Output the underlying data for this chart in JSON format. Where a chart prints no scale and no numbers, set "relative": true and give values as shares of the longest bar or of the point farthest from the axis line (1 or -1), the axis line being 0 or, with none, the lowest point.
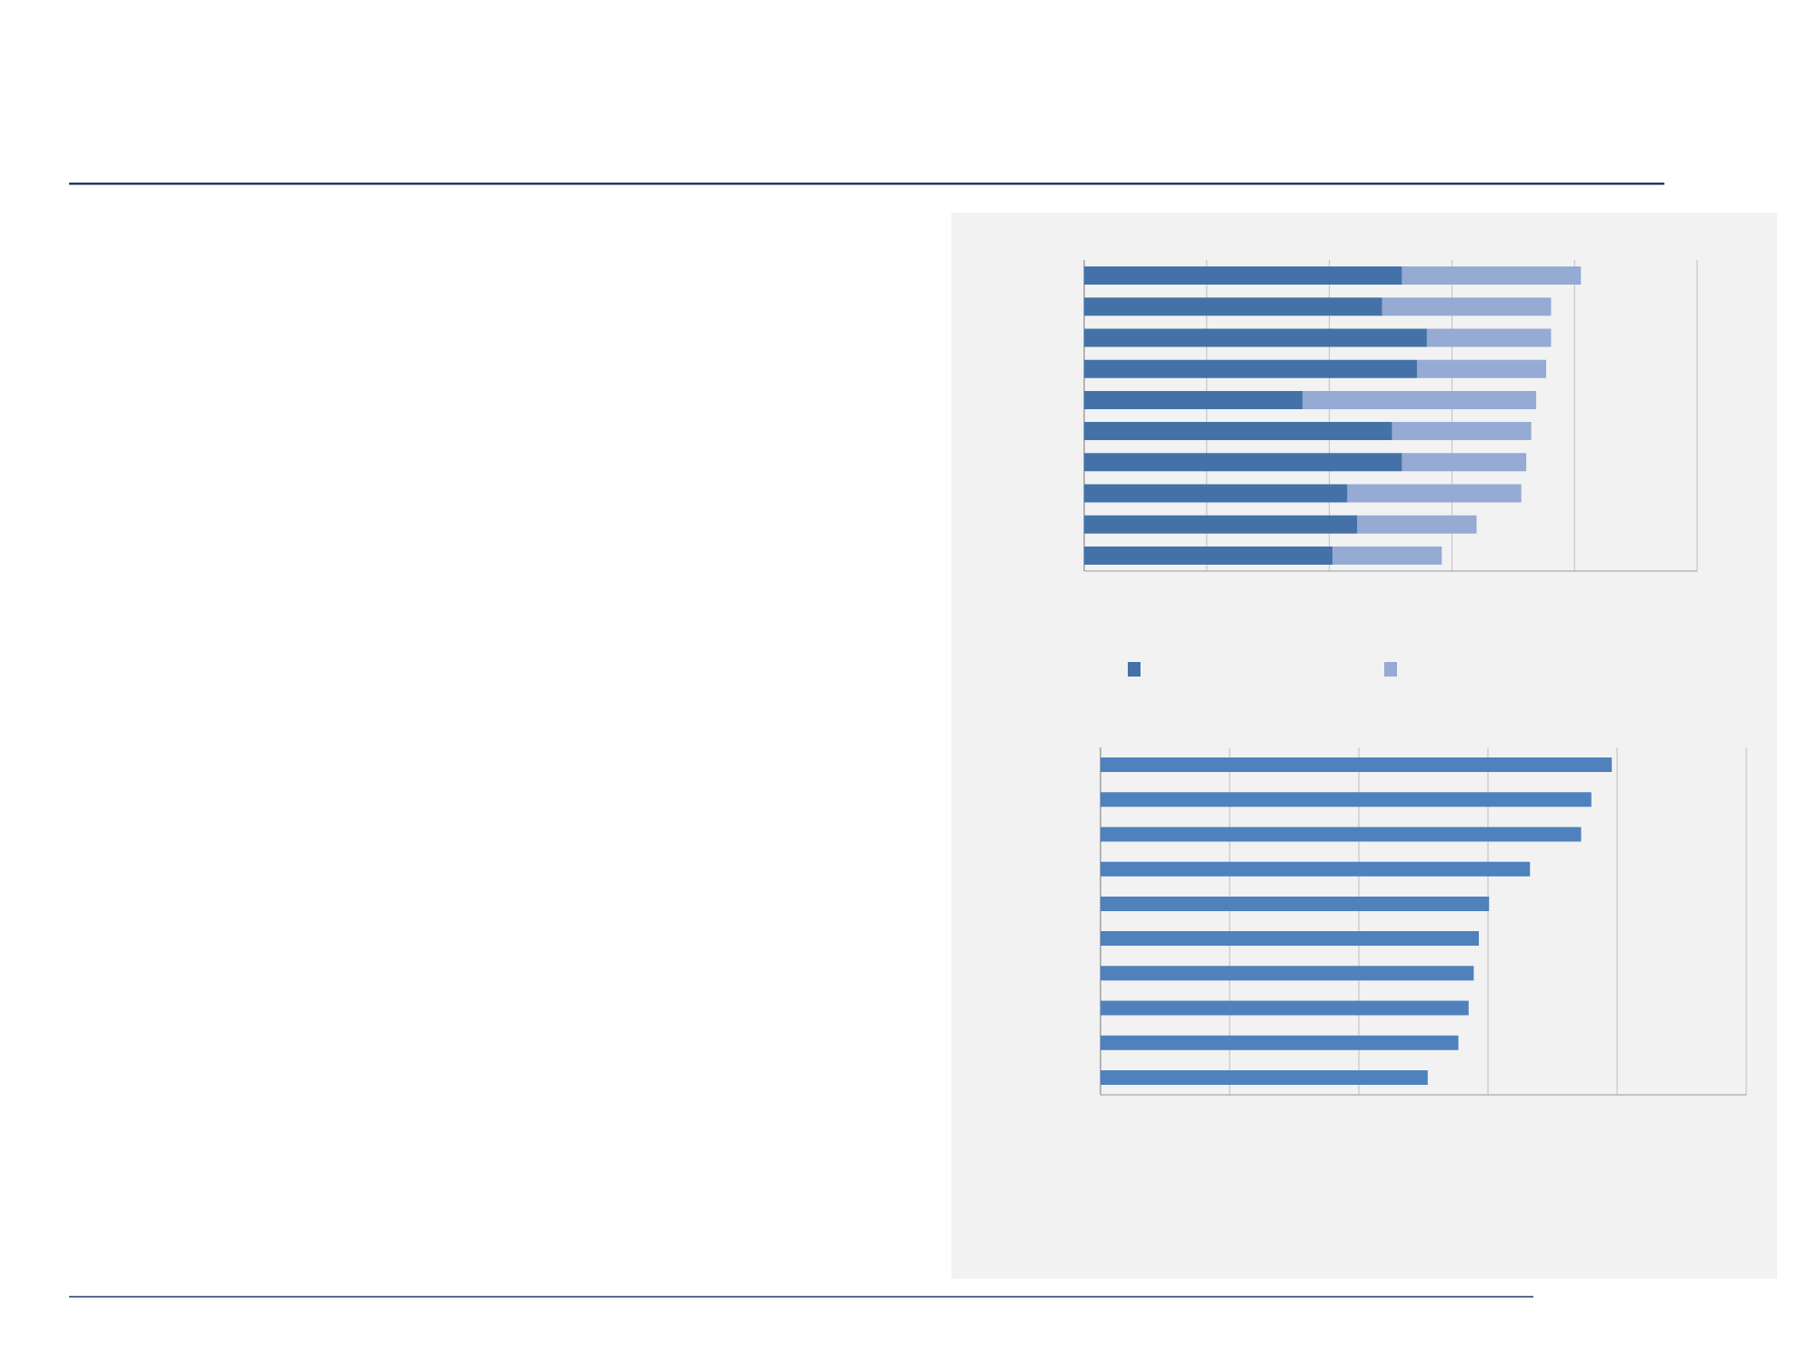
{
  "chart_data": [
    {
      "type": "bar",
      "orientation": "horizontal",
      "stacked": true,
      "relative": true,
      "grid": "x",
      "categories": [
        null,
        null,
        null,
        null,
        null,
        null,
        null,
        null,
        null,
        null
      ],
      "series": [
        {
          "color": "#4472a8",
          "values": [
            0.64,
            0.6,
            0.69,
            0.67,
            0.44,
            0.62,
            0.64,
            0.53,
            0.55,
            0.5
          ]
        },
        {
          "color": "#95abd3",
          "values": [
            0.36,
            0.34,
            0.25,
            0.26,
            0.47,
            0.28,
            0.25,
            0.35,
            0.24,
            0.22
          ]
        }
      ]
    },
    {
      "type": "bar",
      "orientation": "horizontal",
      "relative": true,
      "grid": "x",
      "color": "#4f81bd",
      "categories": [
        null,
        null,
        null,
        null,
        null,
        null,
        null,
        null,
        null,
        null
      ],
      "values": [
        1,
        0.96,
        0.94,
        0.84,
        0.76,
        0.74,
        0.73,
        0.72,
        0.7,
        0.64
      ]
    }
  ]
}
